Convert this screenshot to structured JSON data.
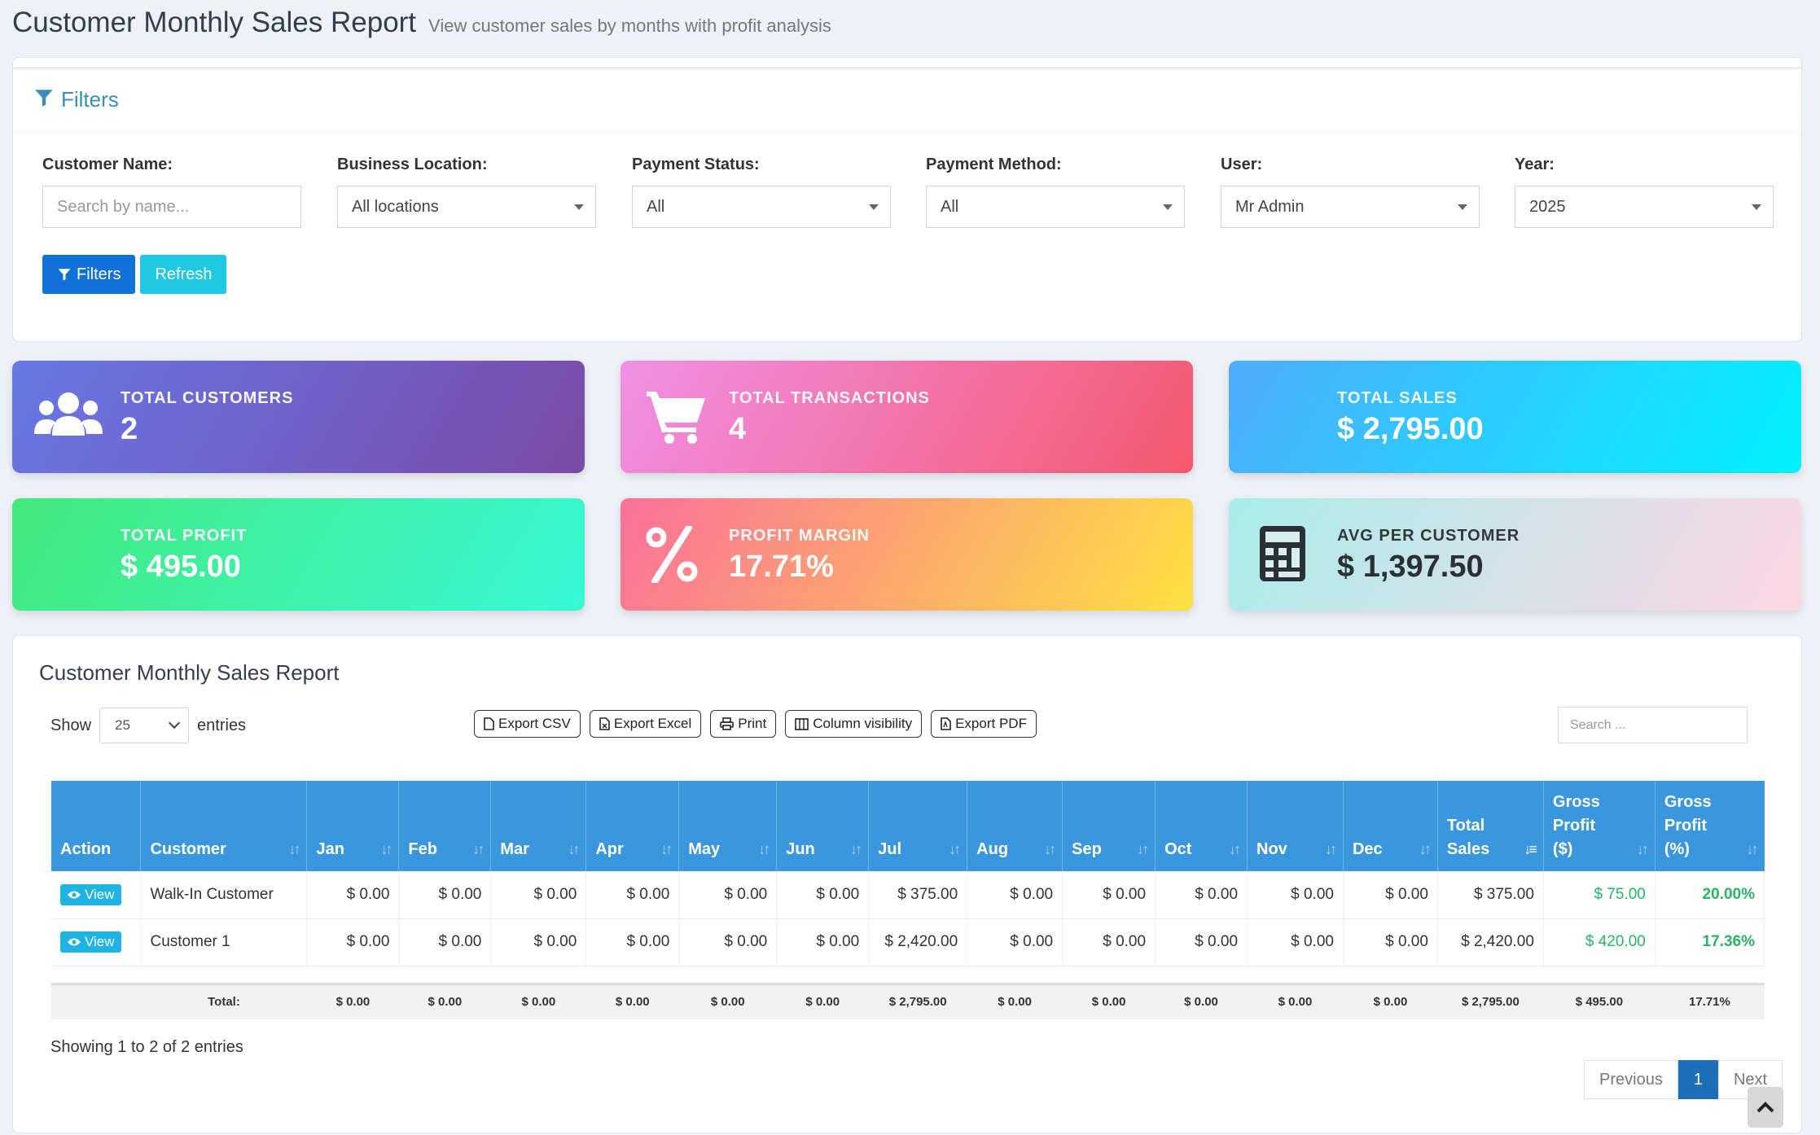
{
  "header": {
    "title": "Customer Monthly Sales Report",
    "subtitle": "View customer sales by months with profit analysis"
  },
  "filters": {
    "title": "Filters",
    "customer_name": {
      "label": "Customer Name:",
      "placeholder": "Search by name..."
    },
    "business_location": {
      "label": "Business Location:",
      "value": "All locations"
    },
    "payment_status": {
      "label": "Payment Status:",
      "value": "All"
    },
    "payment_method": {
      "label": "Payment Method:",
      "value": "All"
    },
    "user": {
      "label": "User:",
      "value": "Mr Admin"
    },
    "year": {
      "label": "Year:",
      "value": "2025"
    },
    "filters_button": "Filters",
    "refresh_button": "Refresh"
  },
  "cards": [
    {
      "label": "TOTAL CUSTOMERS",
      "value": "2",
      "icon": "users-icon"
    },
    {
      "label": "TOTAL TRANSACTIONS",
      "value": "4",
      "icon": "shopping-cart-icon"
    },
    {
      "label": "TOTAL SALES",
      "value": "$ 2,795.00",
      "icon": "none"
    },
    {
      "label": "TOTAL PROFIT",
      "value": "$ 495.00",
      "icon": "none"
    },
    {
      "label": "PROFIT MARGIN",
      "value": "17.71%",
      "icon": "percent-icon"
    },
    {
      "label": "AVG PER CUSTOMER",
      "value": "$ 1,397.50",
      "icon": "calculator-icon"
    }
  ],
  "colors": {
    "card_customers": [
      "#6778e6",
      "#7a4aa8"
    ],
    "card_transactions": [
      "#f090e6",
      "#f5576c"
    ],
    "card_sales": [
      "#4facfe",
      "#00f2fe"
    ],
    "card_profit": [
      "#43e97b",
      "#38f9d7"
    ],
    "card_margin": [
      "#fa709a",
      "#fee140"
    ],
    "card_avg": [
      "#a8edea",
      "#fed6e3"
    ],
    "table_header": "#3a97de",
    "profit_green": "#28b463",
    "primary": "#1072d6",
    "info": "#1fc8e3"
  },
  "table_section": {
    "title": "Customer Monthly Sales Report",
    "show_label": "Show",
    "entries_label": "entries",
    "page_length": "25",
    "export_buttons": [
      "Export CSV",
      "Export Excel",
      "Print",
      "Column visibility",
      "Export PDF"
    ],
    "search_placeholder": "Search ...",
    "columns": [
      "Action",
      "Customer",
      "Jan",
      "Feb",
      "Mar",
      "Apr",
      "May",
      "Jun",
      "Jul",
      "Aug",
      "Sep",
      "Oct",
      "Nov",
      "Dec",
      "Total Sales",
      "Gross Profit ($)",
      "Gross Profit (%)"
    ],
    "view_label": "View",
    "rows": [
      {
        "customer": "Walk-In Customer",
        "months": [
          "$ 0.00",
          "$ 0.00",
          "$ 0.00",
          "$ 0.00",
          "$ 0.00",
          "$ 0.00",
          "$ 375.00",
          "$ 0.00",
          "$ 0.00",
          "$ 0.00",
          "$ 0.00",
          "$ 0.00"
        ],
        "total_sales": "$ 375.00",
        "gross_profit": "$ 75.00",
        "gross_profit_pct": "20.00%"
      },
      {
        "customer": "Customer 1",
        "months": [
          "$ 0.00",
          "$ 0.00",
          "$ 0.00",
          "$ 0.00",
          "$ 0.00",
          "$ 0.00",
          "$ 2,420.00",
          "$ 0.00",
          "$ 0.00",
          "$ 0.00",
          "$ 0.00",
          "$ 0.00"
        ],
        "total_sales": "$ 2,420.00",
        "gross_profit": "$ 420.00",
        "gross_profit_pct": "17.36%"
      }
    ],
    "totals": {
      "label": "Total:",
      "months": [
        "$ 0.00",
        "$ 0.00",
        "$ 0.00",
        "$ 0.00",
        "$ 0.00",
        "$ 0.00",
        "$ 2,795.00",
        "$ 0.00",
        "$ 0.00",
        "$ 0.00",
        "$ 0.00",
        "$ 0.00"
      ],
      "total_sales": "$ 2,795.00",
      "gross_profit": "$ 495.00",
      "gross_profit_pct": "17.71%"
    },
    "showing_text": "Showing 1 to 2 of 2 entries",
    "pagination": {
      "previous": "Previous",
      "current": "1",
      "next": "Next"
    }
  }
}
